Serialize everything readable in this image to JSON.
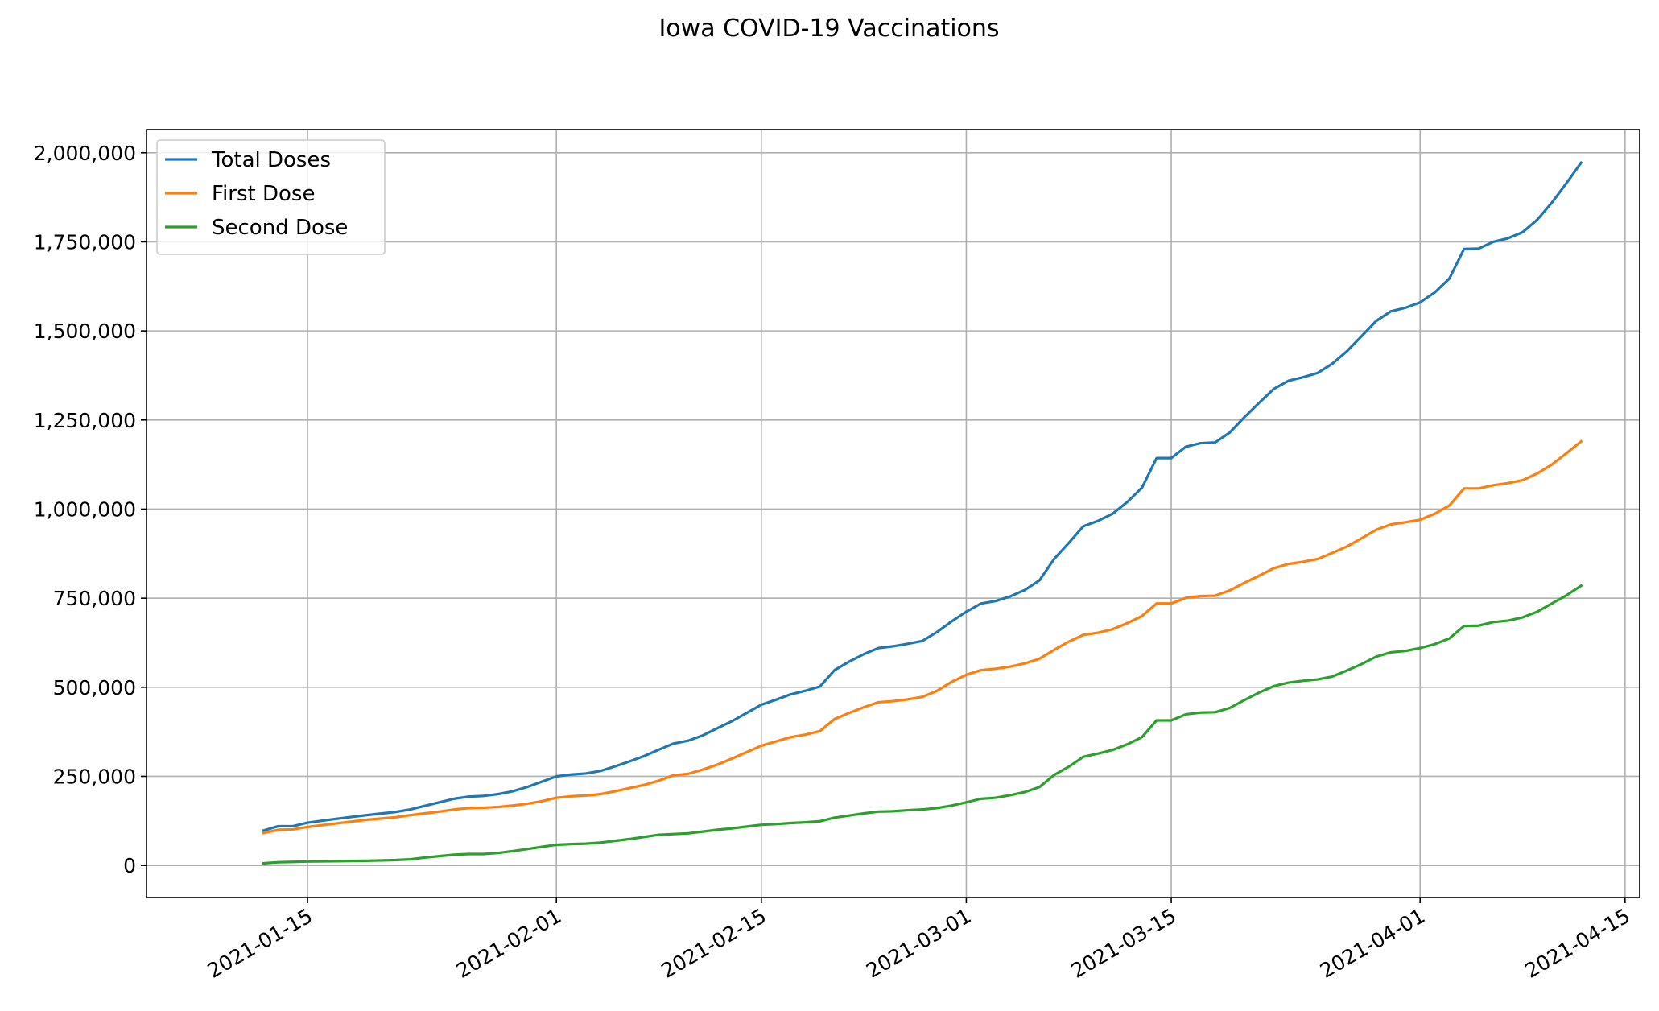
{
  "chart_data": {
    "type": "line",
    "title": "Iowa COVID-19 Vaccinations",
    "xlabel": "",
    "ylabel": "",
    "x_axis": {
      "type": "date",
      "range": [
        "2021-01-04",
        "2021-04-16"
      ],
      "ticks": [
        "2021-01-15",
        "2021-02-01",
        "2021-02-15",
        "2021-03-01",
        "2021-03-15",
        "2021-04-01",
        "2021-04-15"
      ]
    },
    "y_axis": {
      "range": [
        -90000,
        2065000
      ],
      "ticks": [
        0,
        250000,
        500000,
        750000,
        1000000,
        1250000,
        1500000,
        1750000,
        2000000
      ],
      "tick_labels": [
        "0",
        "250,000",
        "500,000",
        "750,000",
        "1,000,000",
        "1,250,000",
        "1,500,000",
        "1,750,000",
        "2,000,000"
      ]
    },
    "grid": true,
    "legend_position": "top-left",
    "series": [
      {
        "name": "Total Doses",
        "color": "#1f77b4",
        "points": [
          [
            "2021-01-12",
            98000
          ],
          [
            "2021-01-13",
            110000
          ],
          [
            "2021-01-14",
            110000
          ],
          [
            "2021-01-15",
            120000
          ],
          [
            "2021-01-17",
            131000
          ],
          [
            "2021-01-19",
            141000
          ],
          [
            "2021-01-21",
            150000
          ],
          [
            "2021-01-22",
            157000
          ],
          [
            "2021-01-23",
            167000
          ],
          [
            "2021-01-24",
            177000
          ],
          [
            "2021-01-25",
            187000
          ],
          [
            "2021-01-26",
            193000
          ],
          [
            "2021-01-27",
            195000
          ],
          [
            "2021-01-28",
            200000
          ],
          [
            "2021-01-29",
            208000
          ],
          [
            "2021-01-30",
            220000
          ],
          [
            "2021-01-31",
            235000
          ],
          [
            "2021-02-01",
            250000
          ],
          [
            "2021-02-02",
            255000
          ],
          [
            "2021-02-03",
            258000
          ],
          [
            "2021-02-04",
            265000
          ],
          [
            "2021-02-05",
            278000
          ],
          [
            "2021-02-06",
            292000
          ],
          [
            "2021-02-07",
            307000
          ],
          [
            "2021-02-08",
            325000
          ],
          [
            "2021-02-09",
            342000
          ],
          [
            "2021-02-10",
            350000
          ],
          [
            "2021-02-11",
            365000
          ],
          [
            "2021-02-12",
            385000
          ],
          [
            "2021-02-13",
            405000
          ],
          [
            "2021-02-14",
            428000
          ],
          [
            "2021-02-15",
            451000
          ],
          [
            "2021-02-16",
            465000
          ],
          [
            "2021-02-17",
            480000
          ],
          [
            "2021-02-18",
            490000
          ],
          [
            "2021-02-19",
            502000
          ],
          [
            "2021-02-20",
            548000
          ],
          [
            "2021-02-21",
            572000
          ],
          [
            "2021-02-22",
            593000
          ],
          [
            "2021-02-23",
            610000
          ],
          [
            "2021-02-24",
            615000
          ],
          [
            "2021-02-25",
            622000
          ],
          [
            "2021-02-26",
            630000
          ],
          [
            "2021-02-27",
            655000
          ],
          [
            "2021-02-28",
            685000
          ],
          [
            "2021-03-01",
            712000
          ],
          [
            "2021-03-02",
            735000
          ],
          [
            "2021-03-03",
            742000
          ],
          [
            "2021-03-04",
            755000
          ],
          [
            "2021-03-05",
            773000
          ],
          [
            "2021-03-06",
            800000
          ],
          [
            "2021-03-07",
            860000
          ],
          [
            "2021-03-08",
            905000
          ],
          [
            "2021-03-09",
            952000
          ],
          [
            "2021-03-10",
            967000
          ],
          [
            "2021-03-11",
            987000
          ],
          [
            "2021-03-12",
            1020000
          ],
          [
            "2021-03-13",
            1060000
          ],
          [
            "2021-03-14",
            1143000
          ],
          [
            "2021-03-15",
            1143000
          ],
          [
            "2021-03-16",
            1175000
          ],
          [
            "2021-03-17",
            1185000
          ],
          [
            "2021-03-18",
            1187000
          ],
          [
            "2021-03-19",
            1215000
          ],
          [
            "2021-03-20",
            1258000
          ],
          [
            "2021-03-21",
            1298000
          ],
          [
            "2021-03-22",
            1337000
          ],
          [
            "2021-03-23",
            1360000
          ],
          [
            "2021-03-24",
            1370000
          ],
          [
            "2021-03-25",
            1382000
          ],
          [
            "2021-03-26",
            1408000
          ],
          [
            "2021-03-27",
            1443000
          ],
          [
            "2021-03-28",
            1485000
          ],
          [
            "2021-03-29",
            1528000
          ],
          [
            "2021-03-30",
            1555000
          ],
          [
            "2021-03-31",
            1565000
          ],
          [
            "2021-04-01",
            1580000
          ],
          [
            "2021-04-02",
            1608000
          ],
          [
            "2021-04-03",
            1647000
          ],
          [
            "2021-04-04",
            1730000
          ],
          [
            "2021-04-05",
            1731000
          ],
          [
            "2021-04-06",
            1750000
          ],
          [
            "2021-04-07",
            1760000
          ],
          [
            "2021-04-08",
            1777000
          ],
          [
            "2021-04-09",
            1812000
          ],
          [
            "2021-04-10",
            1860000
          ],
          [
            "2021-04-11",
            1915000
          ],
          [
            "2021-04-12",
            1972000
          ]
        ]
      },
      {
        "name": "First Dose",
        "color": "#ff7f0e",
        "points": [
          [
            "2021-01-12",
            91000
          ],
          [
            "2021-01-13",
            100000
          ],
          [
            "2021-01-14",
            101000
          ],
          [
            "2021-01-15",
            108000
          ],
          [
            "2021-01-17",
            118000
          ],
          [
            "2021-01-19",
            128000
          ],
          [
            "2021-01-21",
            135000
          ],
          [
            "2021-01-22",
            141000
          ],
          [
            "2021-01-23",
            146000
          ],
          [
            "2021-01-24",
            151000
          ],
          [
            "2021-01-25",
            157000
          ],
          [
            "2021-01-26",
            161000
          ],
          [
            "2021-01-27",
            162000
          ],
          [
            "2021-01-28",
            164000
          ],
          [
            "2021-01-29",
            168000
          ],
          [
            "2021-01-30",
            173000
          ],
          [
            "2021-01-31",
            180000
          ],
          [
            "2021-02-01",
            190000
          ],
          [
            "2021-02-02",
            194000
          ],
          [
            "2021-02-03",
            196000
          ],
          [
            "2021-02-04",
            200000
          ],
          [
            "2021-02-05",
            208000
          ],
          [
            "2021-02-06",
            217000
          ],
          [
            "2021-02-07",
            226000
          ],
          [
            "2021-02-08",
            238000
          ],
          [
            "2021-02-09",
            253000
          ],
          [
            "2021-02-10",
            257000
          ],
          [
            "2021-02-11",
            269000
          ],
          [
            "2021-02-12",
            283000
          ],
          [
            "2021-02-13",
            300000
          ],
          [
            "2021-02-14",
            318000
          ],
          [
            "2021-02-15",
            336000
          ],
          [
            "2021-02-16",
            348000
          ],
          [
            "2021-02-17",
            360000
          ],
          [
            "2021-02-18",
            367000
          ],
          [
            "2021-02-19",
            377000
          ],
          [
            "2021-02-20",
            411000
          ],
          [
            "2021-02-21",
            428000
          ],
          [
            "2021-02-22",
            444000
          ],
          [
            "2021-02-23",
            458000
          ],
          [
            "2021-02-24",
            461000
          ],
          [
            "2021-02-25",
            466000
          ],
          [
            "2021-02-26",
            473000
          ],
          [
            "2021-02-27",
            490000
          ],
          [
            "2021-02-28",
            515000
          ],
          [
            "2021-03-01",
            535000
          ],
          [
            "2021-03-02",
            548000
          ],
          [
            "2021-03-03",
            552000
          ],
          [
            "2021-03-04",
            558000
          ],
          [
            "2021-03-05",
            567000
          ],
          [
            "2021-03-06",
            580000
          ],
          [
            "2021-03-07",
            605000
          ],
          [
            "2021-03-08",
            628000
          ],
          [
            "2021-03-09",
            647000
          ],
          [
            "2021-03-10",
            653000
          ],
          [
            "2021-03-11",
            663000
          ],
          [
            "2021-03-12",
            680000
          ],
          [
            "2021-03-13",
            700000
          ],
          [
            "2021-03-14",
            735000
          ],
          [
            "2021-03-15",
            735000
          ],
          [
            "2021-03-16",
            751000
          ],
          [
            "2021-03-17",
            756000
          ],
          [
            "2021-03-18",
            757000
          ],
          [
            "2021-03-19",
            772000
          ],
          [
            "2021-03-20",
            793000
          ],
          [
            "2021-03-21",
            813000
          ],
          [
            "2021-03-22",
            834000
          ],
          [
            "2021-03-23",
            846000
          ],
          [
            "2021-03-24",
            852000
          ],
          [
            "2021-03-25",
            860000
          ],
          [
            "2021-03-26",
            877000
          ],
          [
            "2021-03-27",
            895000
          ],
          [
            "2021-03-28",
            918000
          ],
          [
            "2021-03-29",
            942000
          ],
          [
            "2021-03-30",
            957000
          ],
          [
            "2021-03-31",
            963000
          ],
          [
            "2021-04-01",
            970000
          ],
          [
            "2021-04-02",
            987000
          ],
          [
            "2021-04-03",
            1010000
          ],
          [
            "2021-04-04",
            1058000
          ],
          [
            "2021-04-05",
            1058000
          ],
          [
            "2021-04-06",
            1067000
          ],
          [
            "2021-04-07",
            1073000
          ],
          [
            "2021-04-08",
            1081000
          ],
          [
            "2021-04-09",
            1100000
          ],
          [
            "2021-04-10",
            1125000
          ],
          [
            "2021-04-11",
            1157000
          ],
          [
            "2021-04-12",
            1190000
          ]
        ]
      },
      {
        "name": "Second Dose",
        "color": "#2ca02c",
        "points": [
          [
            "2021-01-12",
            6000
          ],
          [
            "2021-01-13",
            9000
          ],
          [
            "2021-01-14",
            10000
          ],
          [
            "2021-01-15",
            11000
          ],
          [
            "2021-01-17",
            12000
          ],
          [
            "2021-01-19",
            13000
          ],
          [
            "2021-01-21",
            15000
          ],
          [
            "2021-01-22",
            17000
          ],
          [
            "2021-01-23",
            22000
          ],
          [
            "2021-01-24",
            26000
          ],
          [
            "2021-01-25",
            30000
          ],
          [
            "2021-01-26",
            32000
          ],
          [
            "2021-01-27",
            32000
          ],
          [
            "2021-01-28",
            35000
          ],
          [
            "2021-01-29",
            40000
          ],
          [
            "2021-01-30",
            46000
          ],
          [
            "2021-01-31",
            52000
          ],
          [
            "2021-02-01",
            58000
          ],
          [
            "2021-02-02",
            60000
          ],
          [
            "2021-02-03",
            61000
          ],
          [
            "2021-02-04",
            64000
          ],
          [
            "2021-02-05",
            69000
          ],
          [
            "2021-02-06",
            74000
          ],
          [
            "2021-02-07",
            80000
          ],
          [
            "2021-02-08",
            86000
          ],
          [
            "2021-02-09",
            88000
          ],
          [
            "2021-02-10",
            90000
          ],
          [
            "2021-02-11",
            95000
          ],
          [
            "2021-02-12",
            100000
          ],
          [
            "2021-02-13",
            104000
          ],
          [
            "2021-02-14",
            109000
          ],
          [
            "2021-02-15",
            114000
          ],
          [
            "2021-02-16",
            116000
          ],
          [
            "2021-02-17",
            119000
          ],
          [
            "2021-02-18",
            121000
          ],
          [
            "2021-02-19",
            124000
          ],
          [
            "2021-02-20",
            134000
          ],
          [
            "2021-02-21",
            140000
          ],
          [
            "2021-02-22",
            146000
          ],
          [
            "2021-02-23",
            151000
          ],
          [
            "2021-02-24",
            152000
          ],
          [
            "2021-02-25",
            155000
          ],
          [
            "2021-02-26",
            157000
          ],
          [
            "2021-02-27",
            161000
          ],
          [
            "2021-02-28",
            168000
          ],
          [
            "2021-03-01",
            177000
          ],
          [
            "2021-03-02",
            187000
          ],
          [
            "2021-03-03",
            190000
          ],
          [
            "2021-03-04",
            197000
          ],
          [
            "2021-03-05",
            206000
          ],
          [
            "2021-03-06",
            220000
          ],
          [
            "2021-03-07",
            254000
          ],
          [
            "2021-03-08",
            277000
          ],
          [
            "2021-03-09",
            305000
          ],
          [
            "2021-03-10",
            314000
          ],
          [
            "2021-03-11",
            324000
          ],
          [
            "2021-03-12",
            340000
          ],
          [
            "2021-03-13",
            360000
          ],
          [
            "2021-03-14",
            407000
          ],
          [
            "2021-03-15",
            407000
          ],
          [
            "2021-03-16",
            424000
          ],
          [
            "2021-03-17",
            429000
          ],
          [
            "2021-03-18",
            430000
          ],
          [
            "2021-03-19",
            442000
          ],
          [
            "2021-03-20",
            464000
          ],
          [
            "2021-03-21",
            485000
          ],
          [
            "2021-03-22",
            503000
          ],
          [
            "2021-03-23",
            513000
          ],
          [
            "2021-03-24",
            518000
          ],
          [
            "2021-03-25",
            522000
          ],
          [
            "2021-03-26",
            530000
          ],
          [
            "2021-03-27",
            547000
          ],
          [
            "2021-03-28",
            565000
          ],
          [
            "2021-03-29",
            586000
          ],
          [
            "2021-03-30",
            598000
          ],
          [
            "2021-03-31",
            602000
          ],
          [
            "2021-04-01",
            610000
          ],
          [
            "2021-04-02",
            621000
          ],
          [
            "2021-04-03",
            637000
          ],
          [
            "2021-04-04",
            672000
          ],
          [
            "2021-04-05",
            673000
          ],
          [
            "2021-04-06",
            683000
          ],
          [
            "2021-04-07",
            687000
          ],
          [
            "2021-04-08",
            696000
          ],
          [
            "2021-04-09",
            712000
          ],
          [
            "2021-04-10",
            735000
          ],
          [
            "2021-04-11",
            758000
          ],
          [
            "2021-04-12",
            785000
          ]
        ]
      }
    ]
  }
}
